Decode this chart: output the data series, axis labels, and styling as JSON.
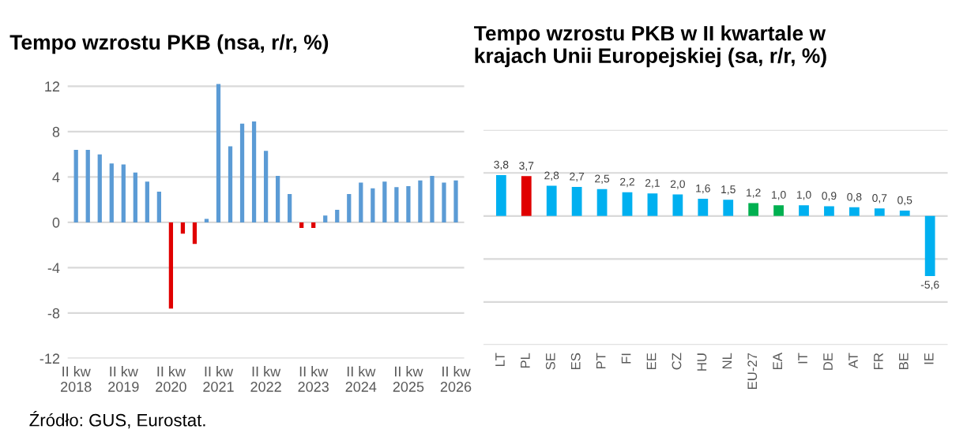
{
  "chart_data": [
    {
      "type": "bar",
      "title": "Tempo wzrostu PKB (nsa, r/r, %)",
      "categories": [
        "II kw\n2018",
        null,
        null,
        null,
        "II kw\n2019",
        null,
        null,
        null,
        "II kw\n2020",
        null,
        null,
        null,
        "II kw\n2021",
        null,
        null,
        null,
        "II kw\n2022",
        null,
        null,
        null,
        "II kw\n2023",
        null,
        null,
        null,
        "II kw\n2024",
        null,
        null,
        null,
        "II kw\n2025",
        null,
        null,
        null,
        "II kw\n2026"
      ],
      "values": [
        6.4,
        6.4,
        6.0,
        5.2,
        5.1,
        4.4,
        3.6,
        2.7,
        -7.6,
        -1.0,
        -1.9,
        0.3,
        12.2,
        6.7,
        8.7,
        8.9,
        6.3,
        4.1,
        2.5,
        -0.5,
        -0.5,
        0.6,
        1.1,
        2.5,
        3.5,
        3.0,
        3.6,
        3.1,
        3.2,
        3.7,
        4.1,
        3.5,
        3.7
      ],
      "colors": [
        "#5b9bd5",
        "#5b9bd5",
        "#5b9bd5",
        "#5b9bd5",
        "#5b9bd5",
        "#5b9bd5",
        "#5b9bd5",
        "#5b9bd5",
        "#e00000",
        "#e00000",
        "#e00000",
        "#5b9bd5",
        "#5b9bd5",
        "#5b9bd5",
        "#5b9bd5",
        "#5b9bd5",
        "#5b9bd5",
        "#5b9bd5",
        "#5b9bd5",
        "#e00000",
        "#e00000",
        "#5b9bd5",
        "#5b9bd5",
        "#5b9bd5",
        "#5b9bd5",
        "#5b9bd5",
        "#5b9bd5",
        "#5b9bd5",
        "#5b9bd5",
        "#5b9bd5",
        "#5b9bd5",
        "#5b9bd5",
        "#5b9bd5"
      ],
      "ylim": [
        -12,
        12.5
      ],
      "yticks": [
        -12,
        -8,
        -4,
        0,
        4,
        8,
        12
      ],
      "grid": "y",
      "annotations": [
        "Źródło: GUS, Eurostat."
      ]
    },
    {
      "type": "bar",
      "title": "Tempo wzrostu PKB w II kwartale w krajach Unii Europejskiej (sa, r/r, %)",
      "categories": [
        "LT",
        "PL",
        "SE",
        "ES",
        "PT",
        "FI",
        "EE",
        "CZ",
        "HU",
        "NL",
        "EU-27",
        "EA",
        "IT",
        "DE",
        "AT",
        "FR",
        "BE",
        "IE"
      ],
      "values": [
        3.8,
        3.7,
        2.8,
        2.7,
        2.5,
        2.2,
        2.1,
        2.0,
        1.6,
        1.5,
        1.2,
        1.0,
        1.0,
        0.9,
        0.8,
        0.7,
        0.5,
        -5.6
      ],
      "value_labels": [
        "3,8",
        "3,7",
        "2,8",
        "2,7",
        "2,5",
        "2,2",
        "2,1",
        "2,0",
        "1,6",
        "1,5",
        "1,2",
        "1,0",
        "1,0",
        "0,9",
        "0,8",
        "0,7",
        "0,5",
        "-5,6"
      ],
      "colors": [
        "#00b0f0",
        "#e00000",
        "#00b0f0",
        "#00b0f0",
        "#00b0f0",
        "#00b0f0",
        "#00b0f0",
        "#00b0f0",
        "#00b0f0",
        "#00b0f0",
        "#00b050",
        "#00b050",
        "#00b0f0",
        "#00b0f0",
        "#00b0f0",
        "#00b0f0",
        "#00b0f0",
        "#00b0f0"
      ],
      "ylim": [
        -12,
        8
      ],
      "yticks": [
        {
          "value": -12,
          "label": null
        },
        {
          "value": -8,
          "label": null
        },
        {
          "value": -4,
          "label": null
        },
        {
          "value": 0,
          "label": null
        },
        {
          "value": 4,
          "label": null
        },
        {
          "value": 8,
          "label": null
        }
      ],
      "grid": "y",
      "tick_labels": "x"
    }
  ]
}
